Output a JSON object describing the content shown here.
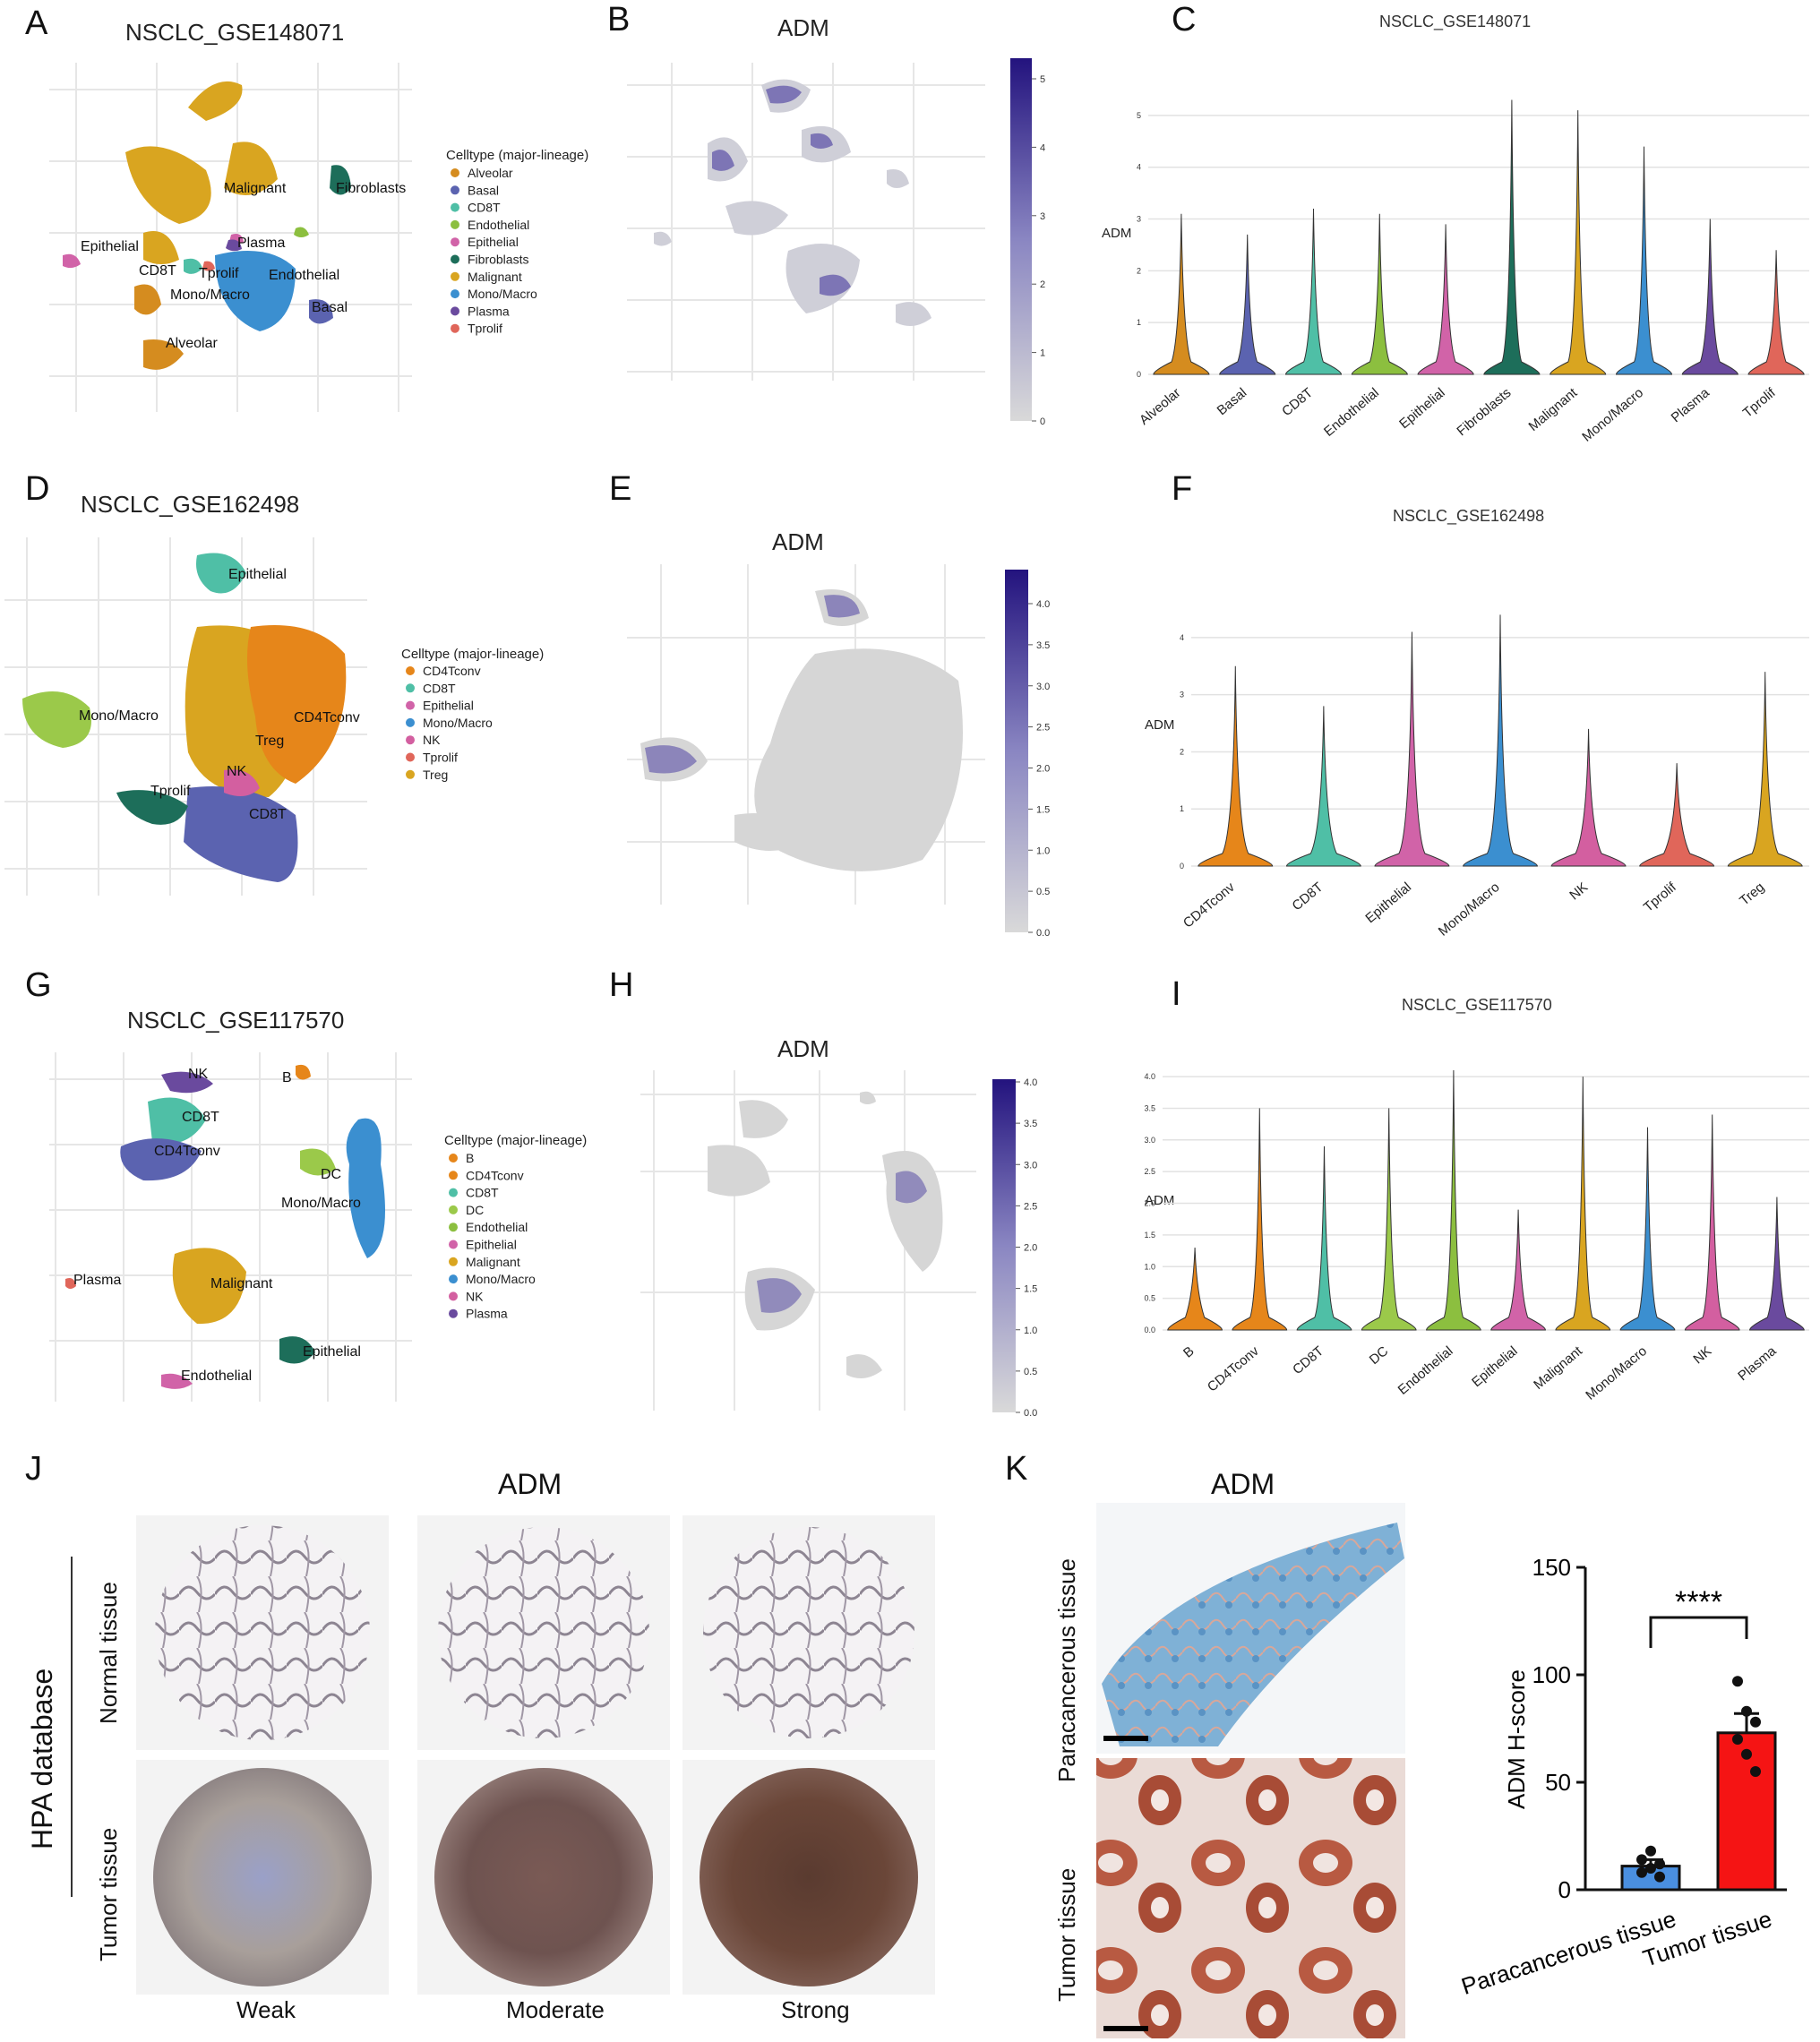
{
  "panels": {
    "A": {
      "letter": "A",
      "title": "NSCLC_GSE148071",
      "legend_title": "Celltype (major-lineage)",
      "legend": [
        "Alveolar",
        "Basal",
        "CD8T",
        "Endothelial",
        "Epithelial",
        "Fibroblasts",
        "Malignant",
        "Mono/Macro",
        "Plasma",
        "Tprolif"
      ],
      "cluster_labels": [
        "Malignant",
        "Fibroblasts",
        "Epithelial",
        "Plasma",
        "CD8T",
        "Tprolif",
        "Endothelial",
        "Mono/Macro",
        "Basal",
        "Alveolar"
      ]
    },
    "B": {
      "letter": "B",
      "title": "ADM",
      "colorbar_ticks": [
        "5",
        "4",
        "3",
        "2",
        "1",
        "0"
      ]
    },
    "C": {
      "letter": "C",
      "title": "NSCLC_GSE148071",
      "ylabel": "ADM",
      "yticks": [
        "5",
        "4",
        "3",
        "2",
        "1",
        "0"
      ],
      "categories": [
        "Alveolar",
        "Basal",
        "CD8T",
        "Endothelial",
        "Epithelial",
        "Fibroblasts",
        "Malignant",
        "Mono/Macro",
        "Plasma",
        "Tprolif"
      ]
    },
    "D": {
      "letter": "D",
      "title": "NSCLC_GSE162498",
      "legend_title": "Celltype (major-lineage)",
      "legend": [
        "CD4Tconv",
        "CD8T",
        "Epithelial",
        "Mono/Macro",
        "NK",
        "Tprolif",
        "Treg"
      ],
      "cluster_labels": [
        "Epithelial",
        "CD4Tconv",
        "Mono/Macro",
        "Treg",
        "NK",
        "Tprolif",
        "CD8T"
      ]
    },
    "E": {
      "letter": "E",
      "title": "ADM",
      "colorbar_ticks": [
        "4.0",
        "3.5",
        "3.0",
        "2.5",
        "2.0",
        "1.5",
        "1.0",
        "0.5",
        "0.0"
      ]
    },
    "F": {
      "letter": "F",
      "title": "NSCLC_GSE162498",
      "ylabel": "ADM",
      "yticks": [
        "4",
        "3",
        "2",
        "1",
        "0"
      ],
      "categories": [
        "CD4Tconv",
        "CD8T",
        "Epithelial",
        "Mono/Macro",
        "NK",
        "Tprolif",
        "Treg"
      ]
    },
    "G": {
      "letter": "G",
      "title": "NSCLC_GSE117570",
      "legend_title": "Celltype (major-lineage)",
      "legend": [
        "B",
        "CD4Tconv",
        "CD8T",
        "DC",
        "Endothelial",
        "Epithelial",
        "Malignant",
        "Mono/Macro",
        "NK",
        "Plasma"
      ],
      "cluster_labels": [
        "NK",
        "B",
        "CD8T",
        "CD4Tconv",
        "DC",
        "Mono/Macro",
        "Plasma",
        "Malignant",
        "Epithelial",
        "Endothelial"
      ]
    },
    "H": {
      "letter": "H",
      "title": "ADM",
      "colorbar_ticks": [
        "4.0",
        "3.5",
        "3.0",
        "2.5",
        "2.0",
        "1.5",
        "1.0",
        "0.5",
        "0.0"
      ]
    },
    "I": {
      "letter": "I",
      "title": "NSCLC_GSE117570",
      "ylabel": "ADM",
      "yticks": [
        "4.0",
        "3.5",
        "3.0",
        "2.5",
        "2.0",
        "1.5",
        "1.0",
        "0.5",
        "0.0"
      ],
      "categories": [
        "B",
        "CD4Tconv",
        "CD8T",
        "DC",
        "Endothelial",
        "Epithelial",
        "Malignant",
        "Mono/Macro",
        "NK",
        "Plasma"
      ]
    },
    "J": {
      "letter": "J",
      "title": "ADM",
      "side_label": "HPA database",
      "row_labels": [
        "Normal tissue",
        "Tumor tissue"
      ],
      "col_labels": [
        "Weak",
        "Moderate",
        "Strong"
      ]
    },
    "K": {
      "letter": "K",
      "title": "ADM",
      "row_labels": [
        "Paracancerous tissue",
        "Tumor tissue"
      ]
    }
  },
  "colors": {
    "Alveolar": "#d58c1f",
    "Basal": "#5b63b0",
    "CD8T": "#4fbfa6",
    "Endothelial": "#8cbf3f",
    "Epithelial": "#d163a8",
    "Fibroblasts": "#1d6e5a",
    "Malignant": "#d9a520",
    "Mono/Macro": "#3b8fd0",
    "Plasma": "#6a4a9e",
    "Tprolif": "#e0665a",
    "CD4Tconv": "#e6861a",
    "NK": "#d35fa0",
    "Treg": "#d9a520",
    "B": "#e6861a",
    "DC": "#9bc94a",
    "Mono/Macro2": "#3b8fd0"
  },
  "chart_data": [
    {
      "type": "violin",
      "title": "NSCLC_GSE148071",
      "ylabel": "ADM",
      "ylim": [
        0,
        5.5
      ],
      "categories": [
        "Alveolar",
        "Basal",
        "CD8T",
        "Endothelial",
        "Epithelial",
        "Fibroblasts",
        "Malignant",
        "Mono/Macro",
        "Plasma",
        "Tprolif"
      ],
      "max_values": [
        3.1,
        2.7,
        3.2,
        3.1,
        2.9,
        5.3,
        5.1,
        4.4,
        3.0,
        2.4
      ]
    },
    {
      "type": "violin",
      "title": "NSCLC_GSE162498",
      "ylabel": "ADM",
      "ylim": [
        0,
        4.5
      ],
      "categories": [
        "CD4Tconv",
        "CD8T",
        "Epithelial",
        "Mono/Macro",
        "NK",
        "Tprolif",
        "Treg"
      ],
      "max_values": [
        3.5,
        2.8,
        4.1,
        4.4,
        2.4,
        1.8,
        3.4
      ]
    },
    {
      "type": "violin",
      "title": "NSCLC_GSE117570",
      "ylabel": "ADM",
      "ylim": [
        0,
        4.1
      ],
      "categories": [
        "B",
        "CD4Tconv",
        "CD8T",
        "DC",
        "Endothelial",
        "Epithelial",
        "Malignant",
        "Mono/Macro",
        "NK",
        "Plasma"
      ],
      "max_values": [
        1.3,
        3.5,
        2.9,
        3.5,
        4.1,
        1.9,
        4.0,
        3.2,
        3.4,
        2.1
      ]
    },
    {
      "type": "bar",
      "title": "",
      "ylabel": "ADM H-score",
      "ylim": [
        0,
        150
      ],
      "yticks": [
        "150",
        "100",
        "50",
        "0"
      ],
      "categories": [
        "Paracancerous tissue",
        "Tumor tissue"
      ],
      "values": [
        11,
        73
      ],
      "errors": [
        3,
        9
      ],
      "points": [
        [
          8,
          10,
          12,
          14,
          18,
          6
        ],
        [
          97,
          83,
          78,
          70,
          63,
          55
        ]
      ],
      "significance": "****"
    }
  ]
}
